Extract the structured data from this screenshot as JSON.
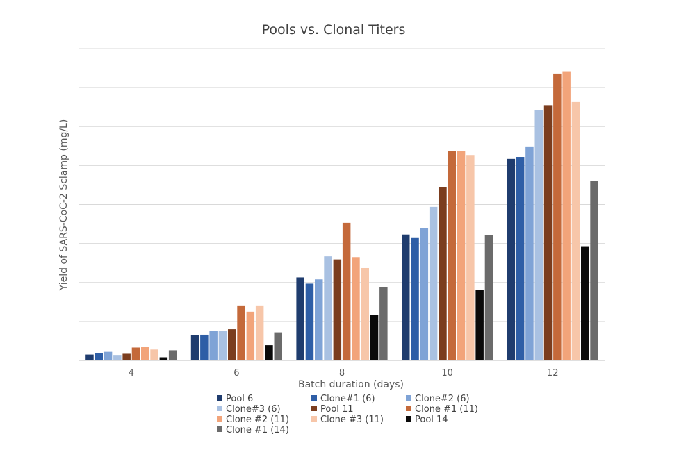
{
  "chart_data": {
    "type": "bar",
    "title": "Pools vs. Clonal Titers",
    "xlabel": "Batch duration (days)",
    "ylabel": "Yield of SARS-CoC-2 Sclamp (mg/L)",
    "categories": [
      "4",
      "6",
      "8",
      "10",
      "12"
    ],
    "ylim": [
      0,
      8
    ],
    "y_tick_labels_shown": false,
    "grid": true,
    "legend": "bottom",
    "series": [
      {
        "name": "Pool 6",
        "color": "#1f3c6e",
        "values": [
          0.15,
          0.65,
          2.13,
          3.23,
          5.17
        ]
      },
      {
        "name": "Clone#1 (6)",
        "color": "#2e5ea6",
        "values": [
          0.18,
          0.66,
          1.97,
          3.14,
          5.22
        ]
      },
      {
        "name": "Clone#2 (6)",
        "color": "#7fa3d6",
        "values": [
          0.22,
          0.76,
          2.08,
          3.4,
          5.49
        ]
      },
      {
        "name": "Clone#3 (6)",
        "color": "#a9c1e2",
        "values": [
          0.14,
          0.76,
          2.67,
          3.94,
          6.42
        ]
      },
      {
        "name": "Pool 11",
        "color": "#7b3d1e",
        "values": [
          0.17,
          0.8,
          2.59,
          4.45,
          6.55
        ]
      },
      {
        "name": "Clone #1 (11)",
        "color": "#c4693a",
        "values": [
          0.33,
          1.41,
          3.53,
          5.37,
          7.36
        ]
      },
      {
        "name": "Clone #2 (11)",
        "color": "#f2a47a",
        "values": [
          0.35,
          1.25,
          2.65,
          5.37,
          7.42
        ]
      },
      {
        "name": "Clone #3 (11)",
        "color": "#f7c6a9",
        "values": [
          0.28,
          1.41,
          2.37,
          5.27,
          6.63
        ]
      },
      {
        "name": "Pool 14",
        "color": "#0a0a0a",
        "values": [
          0.08,
          0.39,
          1.16,
          1.8,
          2.93
        ]
      },
      {
        "name": "Clone #1 (14)",
        "color": "#6b6b6b",
        "values": [
          0.26,
          0.72,
          1.88,
          3.21,
          4.6
        ]
      }
    ]
  }
}
